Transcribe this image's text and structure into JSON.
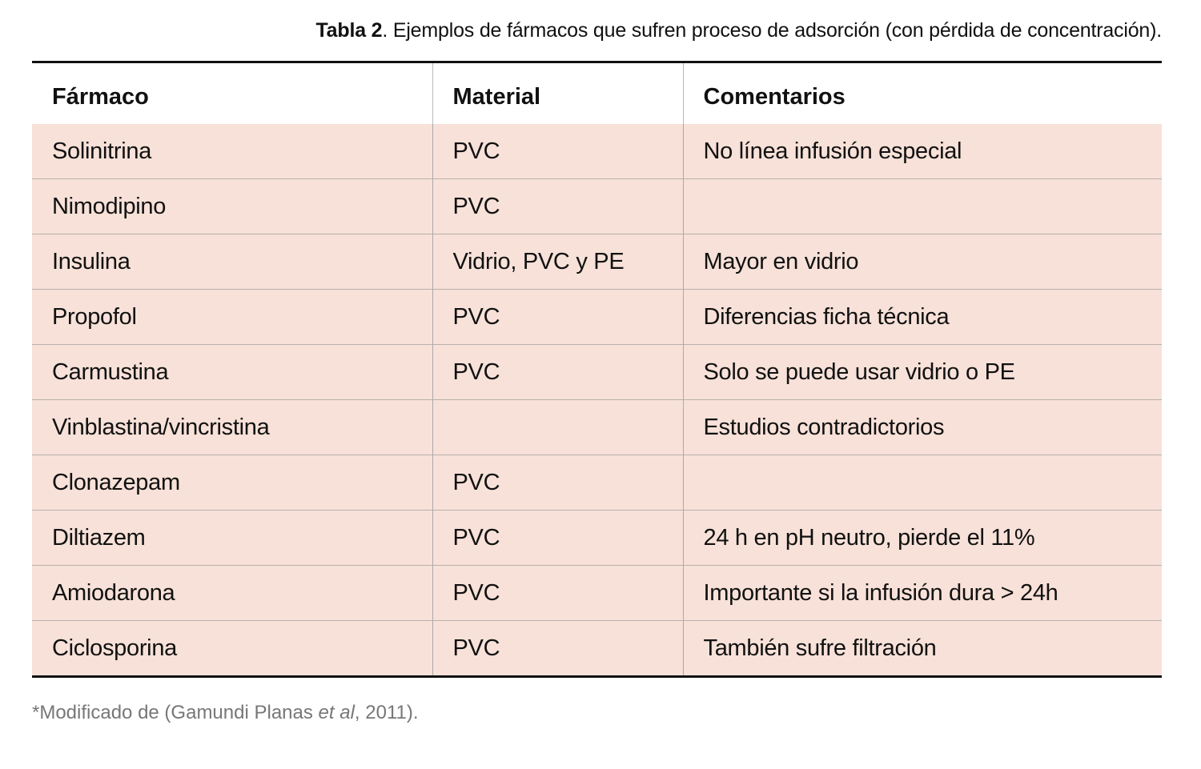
{
  "caption": {
    "label": "Tabla 2",
    "text": ". Ejemplos de fármacos que sufren proceso de adsorción (con pérdida de concentración)."
  },
  "table": {
    "headers": [
      "Fármaco",
      "Material",
      "Comentarios"
    ],
    "rows": [
      [
        "Solinitrina",
        "PVC",
        "No línea infusión especial"
      ],
      [
        "Nimodipino",
        "PVC",
        ""
      ],
      [
        "Insulina",
        "Vidrio, PVC y PE",
        "Mayor en vidrio"
      ],
      [
        "Propofol",
        "PVC",
        "Diferencias ficha técnica"
      ],
      [
        "Carmustina",
        "PVC",
        "Solo se puede usar vidrio o PE"
      ],
      [
        "Vinblastina/vincristina",
        "",
        "Estudios  contradictorios"
      ],
      [
        "Clonazepam",
        "PVC",
        ""
      ],
      [
        "Diltiazem",
        "PVC",
        "24 h en pH neutro, pierde el 11%"
      ],
      [
        "Amiodarona",
        "PVC",
        "Importante si la infusión dura > 24h"
      ],
      [
        "Ciclosporina",
        "PVC",
        "También sufre filtración"
      ]
    ]
  },
  "footnote": {
    "before": "*Modificado de (Gamundi Planas ",
    "italic": "et al",
    "after": ", 2011)."
  },
  "colors": {
    "row_bg": "#f7e1d8",
    "rule": "#111111",
    "footnote": "#777777"
  }
}
